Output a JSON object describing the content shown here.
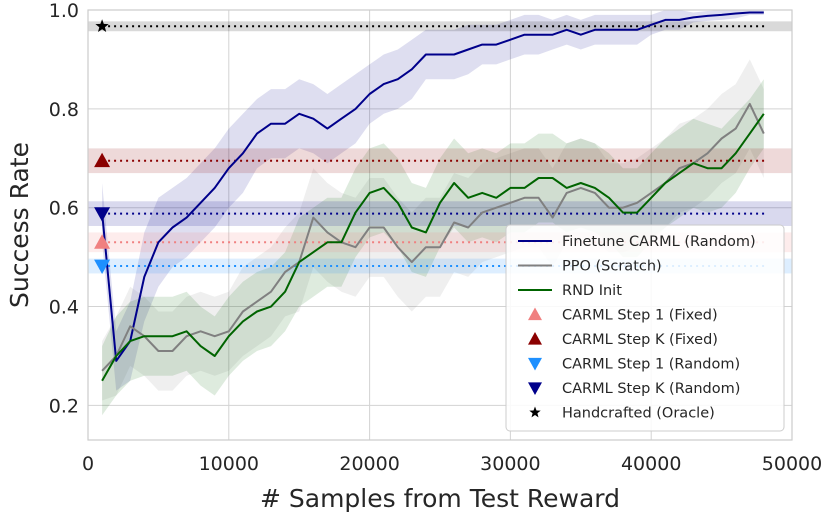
{
  "chart_data": {
    "type": "line",
    "title": "",
    "xlabel": "# Samples from Test Reward",
    "ylabel": "Success Rate",
    "xlim": [
      0,
      50000
    ],
    "ylim": [
      0.13,
      1.0
    ],
    "xticks": [
      0,
      10000,
      20000,
      30000,
      40000,
      50000
    ],
    "xtick_labels": [
      "0",
      "10000",
      "20000",
      "30000",
      "40000",
      "50000"
    ],
    "yticks": [
      0.2,
      0.4,
      0.6,
      0.8,
      1.0
    ],
    "ytick_labels": [
      "0.2",
      "0.4",
      "0.6",
      "0.8",
      "1.0"
    ],
    "grid": true,
    "legend_position": "bottom-right",
    "series": [
      {
        "name": "Finetune CARML (Random)",
        "color": "#00008b",
        "x": [
          1000,
          2000,
          3000,
          4000,
          5000,
          6000,
          7000,
          8000,
          9000,
          10000,
          11000,
          12000,
          13000,
          14000,
          15000,
          16000,
          17000,
          18000,
          19000,
          20000,
          21000,
          22000,
          23000,
          24000,
          25000,
          26000,
          27000,
          28000,
          29000,
          30000,
          31000,
          32000,
          33000,
          34000,
          35000,
          36000,
          37000,
          38000,
          39000,
          40000,
          41000,
          42000,
          43000,
          44000,
          45000,
          46000,
          47000,
          48000
        ],
        "y": [
          0.59,
          0.29,
          0.33,
          0.46,
          0.53,
          0.56,
          0.58,
          0.61,
          0.64,
          0.68,
          0.71,
          0.75,
          0.77,
          0.77,
          0.79,
          0.78,
          0.76,
          0.78,
          0.8,
          0.83,
          0.85,
          0.86,
          0.88,
          0.91,
          0.91,
          0.91,
          0.92,
          0.93,
          0.93,
          0.94,
          0.95,
          0.95,
          0.95,
          0.96,
          0.95,
          0.96,
          0.96,
          0.96,
          0.96,
          0.97,
          0.98,
          0.98,
          0.985,
          0.988,
          0.99,
          0.993,
          0.995,
          0.995
        ],
        "band": [
          0.06,
          0.06,
          0.08,
          0.09,
          0.09,
          0.08,
          0.08,
          0.08,
          0.08,
          0.08,
          0.08,
          0.07,
          0.07,
          0.07,
          0.07,
          0.07,
          0.07,
          0.07,
          0.07,
          0.06,
          0.06,
          0.06,
          0.06,
          0.05,
          0.05,
          0.05,
          0.05,
          0.04,
          0.04,
          0.04,
          0.04,
          0.04,
          0.03,
          0.03,
          0.03,
          0.03,
          0.03,
          0.03,
          0.03,
          0.02,
          0.02,
          0.02,
          0.01,
          0.01,
          0.01,
          0.01,
          0.005,
          0.005
        ]
      },
      {
        "name": "PPO (Scratch)",
        "color": "#808080",
        "x": [
          1000,
          2000,
          3000,
          4000,
          5000,
          6000,
          7000,
          8000,
          9000,
          10000,
          11000,
          12000,
          13000,
          14000,
          15000,
          16000,
          17000,
          18000,
          19000,
          20000,
          21000,
          22000,
          23000,
          24000,
          25000,
          26000,
          27000,
          28000,
          29000,
          30000,
          31000,
          32000,
          33000,
          34000,
          35000,
          36000,
          37000,
          38000,
          39000,
          40000,
          41000,
          42000,
          43000,
          44000,
          45000,
          46000,
          47000,
          48000
        ],
        "y": [
          0.27,
          0.3,
          0.36,
          0.34,
          0.31,
          0.31,
          0.34,
          0.35,
          0.34,
          0.35,
          0.39,
          0.41,
          0.43,
          0.47,
          0.49,
          0.58,
          0.55,
          0.53,
          0.52,
          0.56,
          0.56,
          0.52,
          0.49,
          0.52,
          0.52,
          0.57,
          0.56,
          0.59,
          0.6,
          0.61,
          0.62,
          0.62,
          0.58,
          0.63,
          0.64,
          0.63,
          0.6,
          0.6,
          0.61,
          0.63,
          0.65,
          0.68,
          0.69,
          0.71,
          0.74,
          0.76,
          0.81,
          0.75
        ],
        "band": [
          0.06,
          0.08,
          0.08,
          0.08,
          0.08,
          0.08,
          0.08,
          0.08,
          0.08,
          0.08,
          0.09,
          0.09,
          0.09,
          0.09,
          0.1,
          0.1,
          0.1,
          0.1,
          0.1,
          0.1,
          0.1,
          0.1,
          0.1,
          0.1,
          0.1,
          0.1,
          0.1,
          0.1,
          0.1,
          0.1,
          0.1,
          0.1,
          0.1,
          0.1,
          0.1,
          0.1,
          0.09,
          0.09,
          0.09,
          0.09,
          0.09,
          0.09,
          0.09,
          0.09,
          0.09,
          0.09,
          0.09,
          0.09
        ]
      },
      {
        "name": "RND Init",
        "color": "#006400",
        "x": [
          1000,
          2000,
          3000,
          4000,
          5000,
          6000,
          7000,
          8000,
          9000,
          10000,
          11000,
          12000,
          13000,
          14000,
          15000,
          16000,
          17000,
          18000,
          19000,
          20000,
          21000,
          22000,
          23000,
          24000,
          25000,
          26000,
          27000,
          28000,
          29000,
          30000,
          31000,
          32000,
          33000,
          34000,
          35000,
          36000,
          37000,
          38000,
          39000,
          40000,
          41000,
          42000,
          43000,
          44000,
          45000,
          46000,
          47000,
          48000
        ],
        "y": [
          0.25,
          0.3,
          0.33,
          0.34,
          0.34,
          0.34,
          0.35,
          0.32,
          0.3,
          0.34,
          0.37,
          0.39,
          0.4,
          0.43,
          0.49,
          0.51,
          0.53,
          0.53,
          0.59,
          0.63,
          0.64,
          0.61,
          0.56,
          0.55,
          0.61,
          0.65,
          0.62,
          0.63,
          0.62,
          0.64,
          0.64,
          0.66,
          0.66,
          0.64,
          0.65,
          0.64,
          0.62,
          0.59,
          0.59,
          0.62,
          0.65,
          0.67,
          0.69,
          0.68,
          0.68,
          0.71,
          0.75,
          0.79
        ],
        "band": [
          0.07,
          0.08,
          0.08,
          0.08,
          0.08,
          0.08,
          0.08,
          0.08,
          0.08,
          0.08,
          0.08,
          0.08,
          0.08,
          0.08,
          0.09,
          0.09,
          0.09,
          0.09,
          0.09,
          0.09,
          0.09,
          0.09,
          0.09,
          0.09,
          0.09,
          0.09,
          0.09,
          0.09,
          0.09,
          0.09,
          0.09,
          0.09,
          0.09,
          0.09,
          0.09,
          0.09,
          0.09,
          0.09,
          0.09,
          0.09,
          0.09,
          0.09,
          0.09,
          0.09,
          0.08,
          0.08,
          0.07,
          0.07
        ]
      }
    ],
    "reference_lines": [
      {
        "name": "CARML Step 1 (Fixed)",
        "color": "#f08080",
        "marker": "triangle-up",
        "value": 0.53,
        "band": 0.02
      },
      {
        "name": "CARML Step K (Fixed)",
        "color": "#8b0000",
        "marker": "triangle-up",
        "value": 0.695,
        "band": 0.025
      },
      {
        "name": "CARML Step 1 (Random)",
        "color": "#1e90ff",
        "marker": "triangle-down",
        "value": 0.482,
        "band": 0.015
      },
      {
        "name": "CARML Step K (Random)",
        "color": "#00008b",
        "marker": "triangle-down",
        "value": 0.588,
        "band": 0.025
      },
      {
        "name": "Handcrafted (Oracle)",
        "color": "#000000",
        "marker": "star",
        "value": 0.967,
        "band": 0.01
      }
    ],
    "reference_marker_x": 1000
  }
}
